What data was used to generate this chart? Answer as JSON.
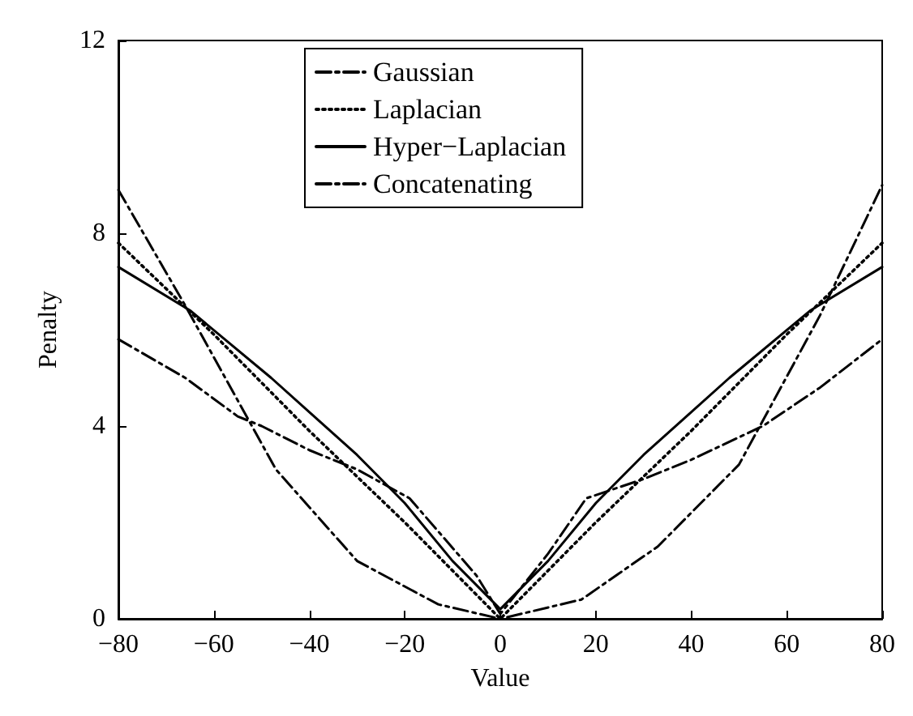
{
  "chart_data": {
    "type": "line",
    "xlabel": "Value",
    "ylabel": "Penalty",
    "xlim": [
      -80,
      80
    ],
    "xticks": [
      -80,
      -60,
      -40,
      -20,
      0,
      20,
      40,
      60,
      80
    ],
    "ylim": [
      0,
      12
    ],
    "yticks": [
      0,
      4,
      8,
      12
    ],
    "grid": false,
    "legend": "top",
    "marker": "none",
    "series": [
      {
        "name": "Gaussian",
        "color": "#000000",
        "line_style": "dashed",
        "x": [
          -80,
          -66,
          -47,
          -30,
          -13,
          0,
          17,
          33,
          50,
          67,
          80
        ],
        "values": [
          8.9,
          6.5,
          3.1,
          1.2,
          0.3,
          0,
          0.4,
          1.5,
          3.2,
          6.3,
          9.0
        ]
      },
      {
        "name": "Laplacian",
        "color": "#000000",
        "line_style": "dotted",
        "x": [
          -80,
          -60,
          -40,
          -20,
          0,
          20,
          40,
          60,
          80
        ],
        "values": [
          7.8,
          5.9,
          3.9,
          2.0,
          0,
          2.0,
          3.9,
          5.9,
          7.8
        ]
      },
      {
        "name": "Hyper−Laplacian",
        "color": "#000000",
        "line_style": "solid",
        "x": [
          -80,
          -65,
          -48,
          -30,
          -20,
          -10,
          0,
          10,
          20,
          30,
          48,
          65,
          80
        ],
        "values": [
          7.3,
          6.4,
          5.0,
          3.4,
          2.4,
          1.2,
          0.2,
          1.2,
          2.4,
          3.4,
          5.0,
          6.4,
          7.3
        ]
      },
      {
        "name": "Concatenating",
        "color": "#000000",
        "line_style": "dashed",
        "x": [
          -80,
          -66,
          -55,
          -50,
          -40,
          -30,
          -19,
          -5,
          0,
          10,
          18,
          30,
          40,
          55,
          67,
          80
        ],
        "values": [
          5.8,
          5.0,
          4.2,
          4.0,
          3.5,
          3.1,
          2.5,
          0.9,
          0.1,
          1.35,
          2.5,
          2.9,
          3.3,
          4.0,
          4.8,
          5.8
        ]
      }
    ]
  }
}
